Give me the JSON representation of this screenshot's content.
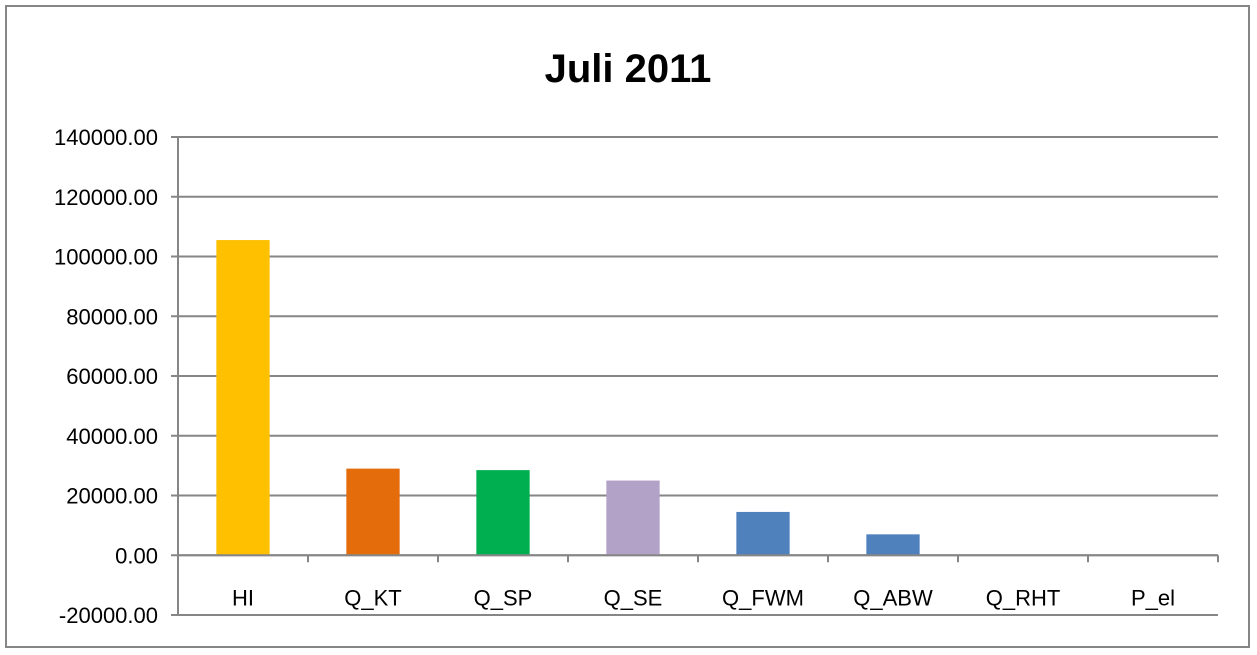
{
  "chart_data": {
    "type": "bar",
    "title": "Juli 2011",
    "categories": [
      "HI",
      "Q_KT",
      "Q_SP",
      "Q_SE",
      "Q_FWM",
      "Q_ABW",
      "Q_RHT",
      "P_el"
    ],
    "values": [
      105500,
      29000,
      28500,
      25000,
      14500,
      7000,
      0,
      0
    ],
    "colors": [
      "#FFC000",
      "#E46C0A",
      "#00B050",
      "#B3A2C7",
      "#4F81BD",
      "#4F81BD",
      "#4F81BD",
      "#4F81BD"
    ],
    "ylim": [
      -20000,
      140000
    ],
    "yticks": [
      140000,
      120000,
      100000,
      80000,
      60000,
      40000,
      20000,
      0,
      -20000
    ],
    "ytick_labels": [
      "140000.00",
      "120000.00",
      "100000.00",
      "80000.00",
      "60000.00",
      "40000.00",
      "20000.00",
      "0.00",
      "-20000.00"
    ],
    "xlabel": "",
    "ylabel": "",
    "grid": true,
    "legend": false
  }
}
